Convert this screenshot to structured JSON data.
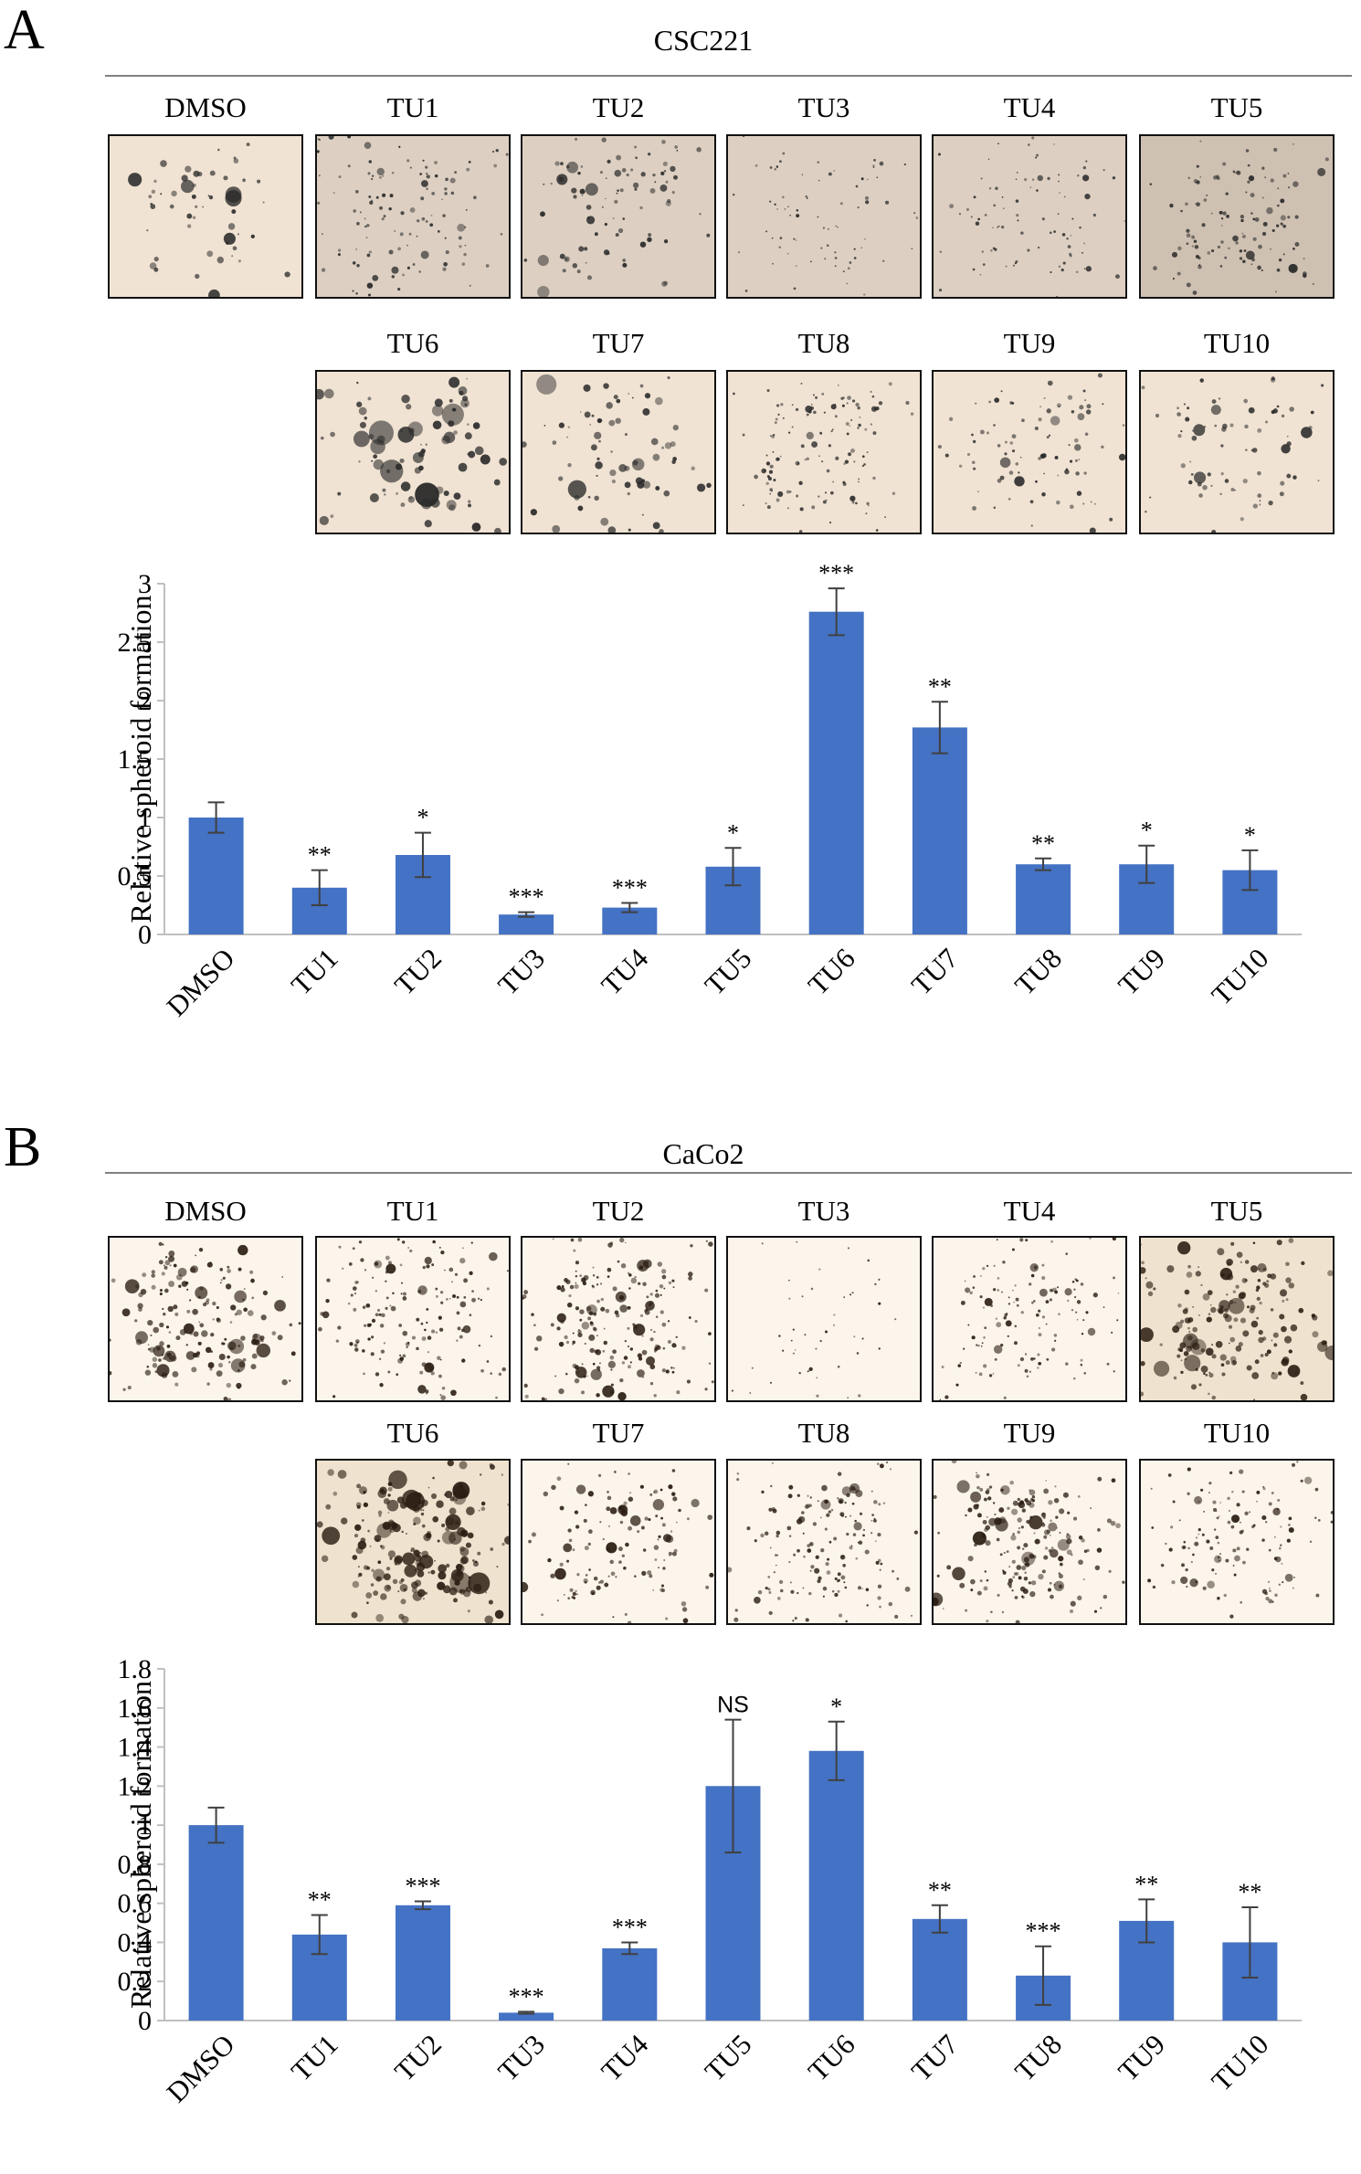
{
  "colors": {
    "bar": "#4472C4",
    "error": "#404040",
    "axis": "#bfbfbf",
    "rule": "#808080",
    "bg_A": "#efe1d2",
    "bg_B": "#f7efe2"
  },
  "panels": [
    {
      "letter": "A",
      "cell_line": "CSC221",
      "thumbnails": [
        "DMSO",
        "TU1",
        "TU2",
        "TU3",
        "TU4",
        "TU5",
        "TU6",
        "TU7",
        "TU8",
        "TU9",
        "TU10"
      ],
      "ticks": [
        "0",
        "0.5",
        "1",
        "1.5",
        "2",
        "2.5",
        "3"
      ]
    },
    {
      "letter": "B",
      "cell_line": "CaCo2",
      "thumbnails": [
        "DMSO",
        "TU1",
        "TU2",
        "TU3",
        "TU4",
        "TU5",
        "TU6",
        "TU7",
        "TU8",
        "TU9",
        "TU10"
      ],
      "ticks": [
        "0",
        "0.2",
        "0.4",
        "0.6",
        "0.8",
        "1",
        "1.2",
        "1.4",
        "1.6",
        "1.8"
      ]
    }
  ],
  "chart_data": [
    {
      "type": "bar",
      "title": "CSC221",
      "xlabel": "",
      "ylabel": "Relative spheroid formation",
      "ylim": [
        0,
        3
      ],
      "yticks": [
        0,
        0.5,
        1,
        1.5,
        2,
        2.5,
        3
      ],
      "categories": [
        "DMSO",
        "TU1",
        "TU2",
        "TU3",
        "TU4",
        "TU5",
        "TU6",
        "TU7",
        "TU8",
        "TU9",
        "TU10"
      ],
      "values": [
        1.0,
        0.4,
        0.68,
        0.17,
        0.23,
        0.58,
        2.76,
        1.77,
        0.6,
        0.6,
        0.55
      ],
      "errors": [
        0.13,
        0.15,
        0.19,
        0.02,
        0.04,
        0.16,
        0.2,
        0.22,
        0.05,
        0.16,
        0.17
      ],
      "significance": [
        "",
        "**",
        "*",
        "***",
        "***",
        "*",
        "***",
        "**",
        "**",
        "*",
        "*"
      ]
    },
    {
      "type": "bar",
      "title": "CaCo2",
      "xlabel": "",
      "ylabel": "Relative spheroid formation",
      "ylim": [
        0,
        1.8
      ],
      "yticks": [
        0,
        0.2,
        0.4,
        0.6,
        0.8,
        1,
        1.2,
        1.4,
        1.6,
        1.8
      ],
      "categories": [
        "DMSO",
        "TU1",
        "TU2",
        "TU3",
        "TU4",
        "TU5",
        "TU6",
        "TU7",
        "TU8",
        "TU9",
        "TU10"
      ],
      "values": [
        1.0,
        0.44,
        0.59,
        0.04,
        0.37,
        1.2,
        1.38,
        0.52,
        0.23,
        0.51,
        0.4
      ],
      "errors": [
        0.09,
        0.1,
        0.02,
        0.005,
        0.03,
        0.34,
        0.15,
        0.07,
        0.15,
        0.11,
        0.18
      ],
      "significance": [
        "",
        "**",
        "***",
        "***",
        "***",
        "NS",
        "*",
        "**",
        "***",
        "**",
        "**"
      ]
    }
  ]
}
